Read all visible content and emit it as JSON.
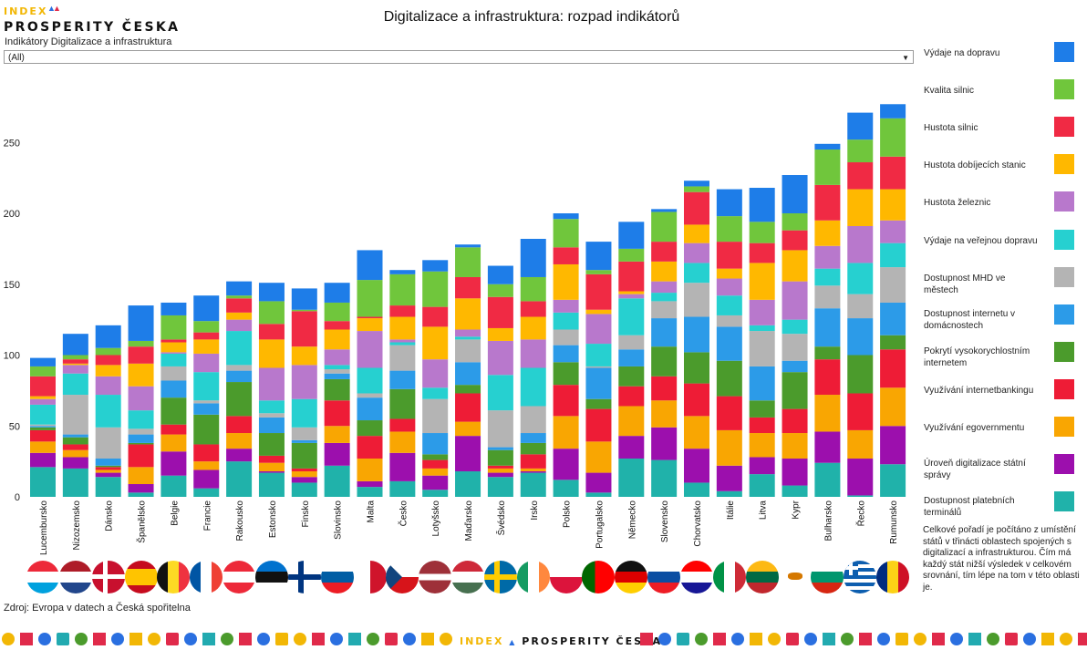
{
  "logo": {
    "line1": "INDEX",
    "line2": "PROSPERITY ČESKA"
  },
  "header": {
    "title": "Digitalizace a infrastruktura: rozpad indikátorů"
  },
  "filter": {
    "label": "Indikátory Digitalizace a infrastruktura",
    "value": "(All)"
  },
  "note": "Celkové pořadí je počítáno z umístění států v třinácti oblastech spojených s digitalizací a infrastrukturou. Čím má každý stát nižší výsledek v celkovém srovnání, tím lépe na tom v této oblasti je.",
  "source": "Zdroj: Evropa v datech a Česká spořitelna",
  "footer_logo": {
    "a": "INDEX",
    "b": "PROSPERITY ČESKA"
  },
  "chart_data": {
    "type": "bar",
    "stacked": true,
    "title": "Digitalizace a infrastruktura: rozpad indikátorů",
    "ylim": [
      0,
      280
    ],
    "yticks": [
      0,
      50,
      100,
      150,
      200,
      250
    ],
    "grid": false,
    "legend_position": "right",
    "categories": [
      "Lucembursko",
      "Nizozemsko",
      "Dánsko",
      "Španělsko",
      "Belgie",
      "Francie",
      "Rakousko",
      "Estonsko",
      "Finsko",
      "Slovinsko",
      "Malta",
      "Česko",
      "Lotyšsko",
      "Maďarsko",
      "Švédsko",
      "Irsko",
      "Polsko",
      "Portugalsko",
      "Německo",
      "Slovensko",
      "Chorvatsko",
      "Itálie",
      "Litva",
      "Kypr",
      "Bulharsko",
      "Řecko",
      "Rumunsko"
    ],
    "series": [
      {
        "name": "Dostupnost platebních terminálů",
        "color": "#20b2aa",
        "values": [
          21,
          20,
          14,
          3,
          15,
          6,
          25,
          17,
          10,
          22,
          7,
          11,
          5,
          18,
          14,
          17,
          12,
          3,
          27,
          26,
          10,
          4,
          16,
          8,
          24,
          1,
          23
        ]
      },
      {
        "name": "Úroveň digitalizace státní správy",
        "color": "#9c0fad",
        "values": [
          10,
          8,
          3,
          6,
          17,
          13,
          9,
          1,
          4,
          16,
          4,
          20,
          10,
          25,
          3,
          1,
          22,
          14,
          16,
          23,
          24,
          18,
          12,
          19,
          22,
          26,
          27
        ]
      },
      {
        "name": "Využívání egovernmentu",
        "color": "#f9a602",
        "values": [
          8,
          5,
          2,
          12,
          12,
          6,
          11,
          6,
          4,
          12,
          16,
          15,
          5,
          10,
          3,
          2,
          23,
          22,
          21,
          19,
          23,
          25,
          17,
          18,
          26,
          20,
          27
        ]
      },
      {
        "name": "Využívání internetbankingu",
        "color": "#ee1c36",
        "values": [
          8,
          4,
          2,
          16,
          7,
          12,
          12,
          5,
          2,
          18,
          16,
          9,
          6,
          20,
          2,
          10,
          22,
          23,
          14,
          17,
          23,
          24,
          11,
          17,
          25,
          26,
          27
        ]
      },
      {
        "name": "Pokrytí vysokorychlostním internetem",
        "color": "#4b9b2c",
        "values": [
          2,
          5,
          1,
          1,
          19,
          21,
          24,
          16,
          18,
          15,
          11,
          21,
          4,
          6,
          11,
          8,
          16,
          7,
          14,
          21,
          22,
          25,
          12,
          26,
          9,
          27,
          10
        ]
      },
      {
        "name": "Dostupnost internetu v domácnostech",
        "color": "#2c9be8",
        "values": [
          1,
          2,
          5,
          6,
          12,
          8,
          8,
          11,
          2,
          4,
          16,
          13,
          15,
          16,
          2,
          7,
          12,
          22,
          12,
          20,
          25,
          24,
          24,
          8,
          27,
          26,
          23
        ]
      },
      {
        "name": "Dostupnost MHD ve městech",
        "color": "#b4b4b4",
        "values": [
          1,
          28,
          22,
          4,
          10,
          2,
          4,
          3,
          9,
          3,
          3,
          18,
          24,
          16,
          26,
          19,
          11,
          1,
          10,
          12,
          24,
          8,
          25,
          19,
          16,
          17,
          25
        ]
      },
      {
        "name": "Výdaje na veřejnou dopravu",
        "color": "#26d0d0",
        "values": [
          14,
          15,
          23,
          13,
          9,
          20,
          24,
          9,
          20,
          3,
          18,
          2,
          8,
          2,
          25,
          27,
          12,
          16,
          26,
          6,
          14,
          14,
          4,
          10,
          12,
          22,
          17
        ]
      },
      {
        "name": "Hustota železnic",
        "color": "#b878cc",
        "values": [
          4,
          6,
          13,
          17,
          1,
          13,
          8,
          23,
          24,
          11,
          26,
          2,
          20,
          5,
          24,
          20,
          9,
          21,
          3,
          8,
          14,
          12,
          18,
          27,
          16,
          26,
          16
        ]
      },
      {
        "name": "Hustota dobíjecích stanic",
        "color": "#ffb800",
        "values": [
          2,
          1,
          8,
          16,
          7,
          10,
          5,
          20,
          13,
          14,
          9,
          16,
          23,
          22,
          9,
          16,
          25,
          3,
          2,
          14,
          13,
          7,
          26,
          22,
          18,
          26,
          22
        ]
      },
      {
        "name": "Hustota silnic",
        "color": "#f02a44",
        "values": [
          14,
          3,
          7,
          12,
          2,
          5,
          10,
          11,
          25,
          6,
          1,
          8,
          14,
          15,
          22,
          11,
          12,
          25,
          21,
          14,
          23,
          19,
          14,
          14,
          25,
          19,
          23
        ]
      },
      {
        "name": "Kvalita silnic",
        "color": "#70c63c",
        "values": [
          7,
          3,
          5,
          4,
          17,
          8,
          2,
          16,
          1,
          13,
          26,
          22,
          25,
          21,
          9,
          17,
          20,
          3,
          9,
          21,
          4,
          18,
          15,
          12,
          25,
          16,
          27
        ]
      },
      {
        "name": "Výdaje na dopravu",
        "color": "#1e7de8",
        "values": [
          6,
          15,
          16,
          25,
          9,
          18,
          10,
          13,
          15,
          14,
          21,
          3,
          8,
          2,
          13,
          27,
          4,
          20,
          19,
          2,
          4,
          19,
          24,
          27,
          4,
          19,
          10
        ]
      }
    ]
  },
  "flags": [
    {
      "country": "Lucembursko",
      "icon": "flag-lu"
    },
    {
      "country": "Nizozemsko",
      "icon": "flag-nl"
    },
    {
      "country": "Dánsko",
      "icon": "flag-dk"
    },
    {
      "country": "Španělsko",
      "icon": "flag-es"
    },
    {
      "country": "Belgie",
      "icon": "flag-be"
    },
    {
      "country": "Francie",
      "icon": "flag-fr"
    },
    {
      "country": "Rakousko",
      "icon": "flag-at"
    },
    {
      "country": "Estonsko",
      "icon": "flag-ee"
    },
    {
      "country": "Finsko",
      "icon": "flag-fi"
    },
    {
      "country": "Slovinsko",
      "icon": "flag-si"
    },
    {
      "country": "Malta",
      "icon": "flag-mt"
    },
    {
      "country": "Česko",
      "icon": "flag-cz"
    },
    {
      "country": "Lotyšsko",
      "icon": "flag-lv"
    },
    {
      "country": "Maďarsko",
      "icon": "flag-hu"
    },
    {
      "country": "Švédsko",
      "icon": "flag-se"
    },
    {
      "country": "Irsko",
      "icon": "flag-ie"
    },
    {
      "country": "Polsko",
      "icon": "flag-pl"
    },
    {
      "country": "Portugalsko",
      "icon": "flag-pt"
    },
    {
      "country": "Německo",
      "icon": "flag-de"
    },
    {
      "country": "Slovensko",
      "icon": "flag-sk"
    },
    {
      "country": "Chorvatsko",
      "icon": "flag-hr"
    },
    {
      "country": "Itálie",
      "icon": "flag-it"
    },
    {
      "country": "Litva",
      "icon": "flag-lt"
    },
    {
      "country": "Kypr",
      "icon": "flag-cy"
    },
    {
      "country": "Bulharsko",
      "icon": "flag-bg"
    },
    {
      "country": "Řecko",
      "icon": "flag-gr"
    },
    {
      "country": "Rumunsko",
      "icon": "flag-ro"
    }
  ]
}
